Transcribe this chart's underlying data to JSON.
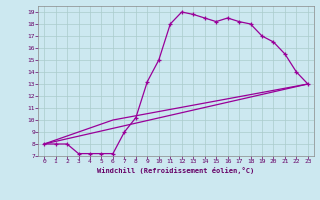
{
  "xlabel": "Windchill (Refroidissement éolien,°C)",
  "bg_color": "#cce8f0",
  "line_color": "#990099",
  "grid_color": "#aacccc",
  "line1_x": [
    0,
    1,
    2,
    3,
    4,
    5,
    6,
    7,
    8,
    9,
    10,
    11,
    12,
    13,
    14,
    15,
    16,
    17,
    18,
    19,
    20,
    21,
    22,
    23
  ],
  "line1_y": [
    8,
    8,
    8,
    7.2,
    7.2,
    7.2,
    7.2,
    9.0,
    10.2,
    13.2,
    15.0,
    18.0,
    19.0,
    18.8,
    18.5,
    18.2,
    18.5,
    18.2,
    18.0,
    17.0,
    16.5,
    15.5,
    14.0,
    13.0
  ],
  "line2_x": [
    0,
    6,
    23
  ],
  "line2_y": [
    8,
    10,
    13
  ],
  "line3_x": [
    0,
    23
  ],
  "line3_y": [
    8,
    13
  ],
  "xlim": [
    -0.5,
    23.5
  ],
  "ylim": [
    7,
    19.5
  ],
  "xticks": [
    0,
    1,
    2,
    3,
    4,
    5,
    6,
    7,
    8,
    9,
    10,
    11,
    12,
    13,
    14,
    15,
    16,
    17,
    18,
    19,
    20,
    21,
    22,
    23
  ],
  "yticks": [
    7,
    8,
    9,
    10,
    11,
    12,
    13,
    14,
    15,
    16,
    17,
    18,
    19
  ]
}
